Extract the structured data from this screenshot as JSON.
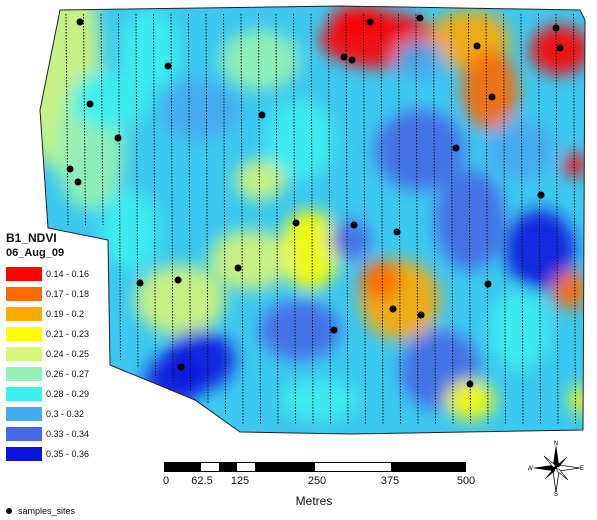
{
  "legend": {
    "title": "B1_NDVI",
    "subtitle": "06_Aug_09",
    "classes": [
      {
        "label": "0.14 - 0.16",
        "color": "#ff0000"
      },
      {
        "label": "0.17 - 0.18",
        "color": "#ff6a00"
      },
      {
        "label": "0.19 - 0.2",
        "color": "#ffaa00"
      },
      {
        "label": "0.21 - 0.23",
        "color": "#ffff00"
      },
      {
        "label": "0.24 - 0.25",
        "color": "#d4f57a"
      },
      {
        "label": "0.26 - 0.27",
        "color": "#96f2b4"
      },
      {
        "label": "0.28 - 0.29",
        "color": "#3cf0f0"
      },
      {
        "label": "0.3 - 0.32",
        "color": "#46aaf0"
      },
      {
        "label": "0.33 - 0.34",
        "color": "#4668e6"
      },
      {
        "label": "0.35 - 0.36",
        "color": "#0a14dc"
      }
    ],
    "samples_label": "samples_sites"
  },
  "scale_bar": {
    "ticks": [
      "0",
      "62.5",
      "125",
      "250",
      "375",
      "500"
    ],
    "unit": "Metres"
  },
  "north_arrow": {
    "n": "N",
    "s": "S",
    "e": "E",
    "w": "W"
  },
  "icons": {
    "north_arrow": "compass-rose-icon",
    "sample_marker": "black-dot-icon"
  }
}
